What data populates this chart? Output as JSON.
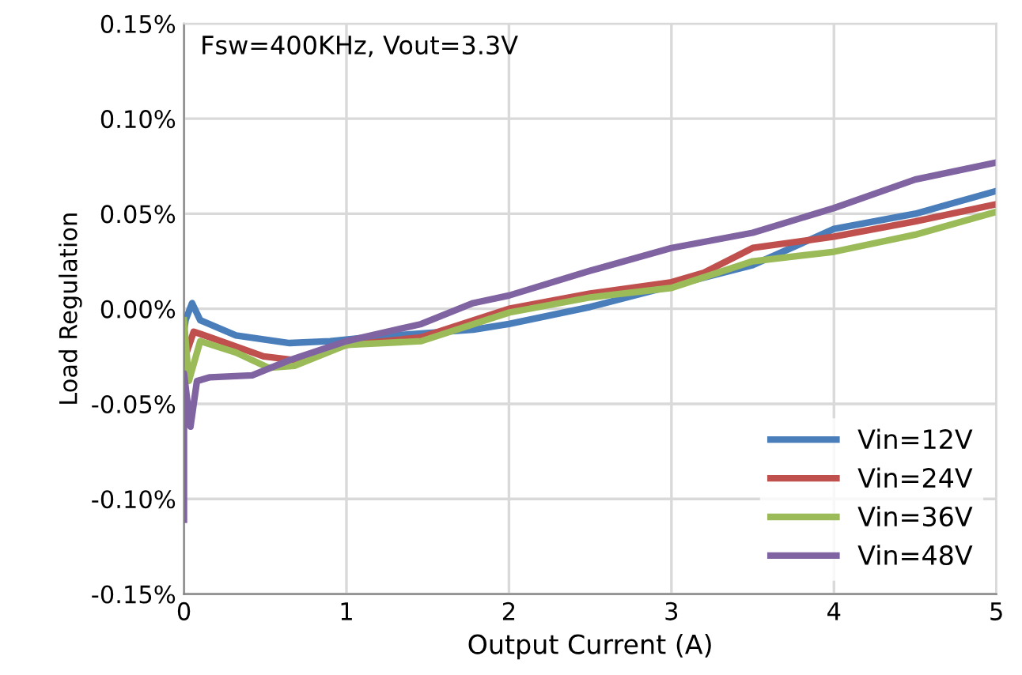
{
  "chart_data": {
    "type": "line",
    "xlabel": "Output Current (A)",
    "ylabel": "Load Regulation",
    "annotations": [
      "Fsw=400KHz, Vout=3.3V"
    ],
    "xlim": [
      0,
      5
    ],
    "xticks": [
      0,
      1,
      2,
      3,
      4,
      5
    ],
    "ylim": [
      -0.15,
      0.15
    ],
    "yticks": [
      {
        "value": -0.15,
        "label": "-0.15%"
      },
      {
        "value": -0.1,
        "label": "-0.10%"
      },
      {
        "value": -0.05,
        "label": "-0.05%"
      },
      {
        "value": 0,
        "label": "0.00%"
      },
      {
        "value": 0.05,
        "label": "0.05%"
      },
      {
        "value": 0.1,
        "label": "0.10%"
      },
      {
        "value": 0.15,
        "label": "0.15%"
      }
    ],
    "grid": true,
    "legend": "bottom right",
    "marker": "none",
    "line_style": "solid",
    "series": [
      {
        "name": "Vin=12V",
        "color": "#4a7ebb",
        "x": [
          0,
          0.01,
          0.05,
          0.1,
          0.32,
          0.65,
          0.9,
          1.13,
          1.78,
          2,
          2.5,
          3,
          3.5,
          4,
          4.5,
          5
        ],
        "values": [
          -0.012,
          -0.006,
          0.003,
          -0.006,
          -0.014,
          -0.018,
          -0.017,
          -0.015,
          -0.011,
          -0.008,
          0.001,
          0.012,
          0.023,
          0.042,
          0.05,
          0.062
        ]
      },
      {
        "name": "Vin=24V",
        "color": "#c0504d",
        "x": [
          0,
          0.06,
          0.16,
          0.49,
          0.68,
          1,
          1.46,
          2,
          2.5,
          3,
          3.2,
          3.5,
          4,
          4.5,
          5
        ],
        "values": [
          -0.027,
          -0.012,
          -0.015,
          -0.025,
          -0.027,
          -0.019,
          -0.015,
          0,
          0.008,
          0.014,
          0.019,
          0.032,
          0.038,
          0.046,
          0.055
        ]
      },
      {
        "name": "Vin=36V",
        "color": "#9bbb59",
        "x": [
          0,
          0.03,
          0.1,
          0.32,
          0.52,
          0.68,
          1,
          1.46,
          2,
          2.5,
          3,
          3.5,
          4,
          4.5,
          5
        ],
        "values": [
          -0.006,
          -0.038,
          -0.017,
          -0.023,
          -0.031,
          -0.03,
          -0.019,
          -0.017,
          -0.002,
          0.006,
          0.011,
          0.025,
          0.03,
          0.039,
          0.051
        ]
      },
      {
        "name": "Vin=48V",
        "color": "#8064a2",
        "x": [
          0,
          0,
          0.04,
          0.08,
          0.16,
          0.42,
          0.65,
          1,
          1.46,
          1.78,
          2,
          2.5,
          3,
          3.5,
          4,
          4.5,
          5
        ],
        "values": [
          -0.111,
          -0.034,
          -0.062,
          -0.038,
          -0.036,
          -0.035,
          -0.027,
          -0.017,
          -0.008,
          0.003,
          0.007,
          0.02,
          0.032,
          0.04,
          0.053,
          0.068,
          0.077
        ]
      }
    ]
  }
}
